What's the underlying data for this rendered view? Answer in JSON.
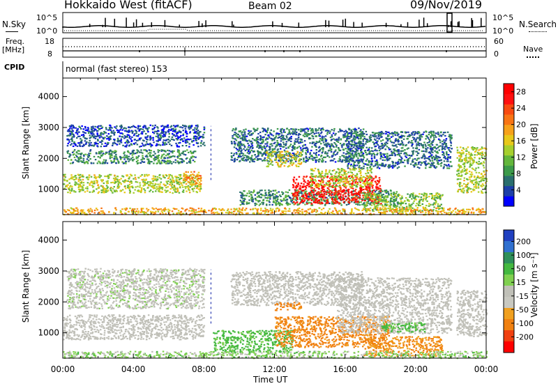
{
  "header": {
    "site": "Hokkaido West (fitACF)",
    "beam": "Beam 02",
    "date": "09/Nov/2019"
  },
  "status_panels": {
    "nsky_label": "N.Sky",
    "nsky_scale_top": "10^5",
    "nsky_scale_bottom": "10^0",
    "nsearch_label": "N.Search",
    "nsearch_scale_top": "10^5",
    "nsearch_scale_bottom": "10^0",
    "freq_label": "Freq.",
    "freq_unit": "[MHz]",
    "freq_top": "18",
    "freq_bottom": "8",
    "nave_label": "Nave",
    "nave_top": "60",
    "nave_bottom": "0",
    "cpid_label": "CPID",
    "cpid_text": "normal (fast stereo) 153"
  },
  "chart_data": [
    {
      "type": "heatmap",
      "panel": "power",
      "ylabel": "Slant Range [km]",
      "xlabel": "Time UT",
      "x_ticks": [
        "00:00",
        "04:00",
        "08:00",
        "12:00",
        "16:00",
        "20:00",
        "00:00"
      ],
      "xlim_hours": [
        0,
        24
      ],
      "y_ticks": [
        1000,
        2000,
        3000,
        4000
      ],
      "ylim": [
        180,
        4600
      ],
      "colorbar": {
        "label": "Power [dB]",
        "ticks": [
          4,
          8,
          12,
          16,
          20,
          24,
          28
        ],
        "range": [
          0,
          30
        ],
        "colors": [
          "#0000ff",
          "#1d3fa8",
          "#2a6e6e",
          "#3c9a4a",
          "#63b63c",
          "#a6cf2e",
          "#e8c81a",
          "#f6a11a",
          "#f87414",
          "#f84a10",
          "#ff1010",
          "#ff0000"
        ]
      },
      "regions": [
        {
          "t0": 0.0,
          "t1": 7.8,
          "r0": 900,
          "r1": 1500,
          "value": 14
        },
        {
          "t0": 0.2,
          "t1": 7.5,
          "r0": 1850,
          "r1": 2300,
          "value": 8
        },
        {
          "t0": 0.2,
          "t1": 8.0,
          "r0": 2400,
          "r1": 3100,
          "value": 4
        },
        {
          "t0": 6.8,
          "t1": 7.8,
          "r0": 1150,
          "r1": 1600,
          "value": 20
        },
        {
          "t0": 9.5,
          "t1": 17.0,
          "r0": 1900,
          "r1": 3000,
          "value": 6
        },
        {
          "t0": 11.5,
          "t1": 13.5,
          "r0": 1750,
          "r1": 2250,
          "value": 16
        },
        {
          "t0": 10.0,
          "t1": 19.0,
          "r0": 500,
          "r1": 1000,
          "value": 8
        },
        {
          "t0": 13.0,
          "t1": 18.0,
          "r0": 550,
          "r1": 1450,
          "value": 27
        },
        {
          "t0": 14.0,
          "t1": 17.5,
          "r0": 1100,
          "r1": 1700,
          "value": 14
        },
        {
          "t0": 16.0,
          "t1": 22.0,
          "r0": 1700,
          "r1": 2900,
          "value": 6
        },
        {
          "t0": 17.0,
          "t1": 21.5,
          "r0": 300,
          "r1": 900,
          "value": 12
        },
        {
          "t0": 22.3,
          "t1": 24.0,
          "r0": 900,
          "r1": 2400,
          "value": 14
        },
        {
          "t0": 0.0,
          "t1": 24.0,
          "r0": 200,
          "r1": 420,
          "value": 18
        }
      ]
    },
    {
      "type": "heatmap",
      "panel": "velocity",
      "ylabel": "Slant Range [km]",
      "xlabel": "Time UT",
      "x_ticks": [
        "00:00",
        "04:00",
        "08:00",
        "12:00",
        "16:00",
        "20:00",
        "00:00"
      ],
      "xlim_hours": [
        0,
        24
      ],
      "y_ticks": [
        1000,
        2000,
        3000,
        4000
      ],
      "ylim": [
        180,
        4600
      ],
      "colorbar": {
        "label": "Velocity [m s⁻¹]",
        "ticks": [
          200,
          100,
          50,
          15,
          -15,
          -50,
          -100,
          -200
        ],
        "colors": [
          "#2040c0",
          "#3070d0",
          "#2e8f5a",
          "#44b840",
          "#80d050",
          "#c0c0b8",
          "#c8c8c0",
          "#f0a020",
          "#f08010",
          "#f04010",
          "#ff0000"
        ]
      },
      "regions": [
        {
          "t0": 0.0,
          "t1": 8.0,
          "r0": 800,
          "r1": 1600,
          "value": 0
        },
        {
          "t0": 0.2,
          "t1": 8.0,
          "r0": 1800,
          "r1": 3100,
          "value": 5
        },
        {
          "t0": 9.5,
          "t1": 17.0,
          "r0": 1900,
          "r1": 3000,
          "value": 0
        },
        {
          "t0": 12.0,
          "t1": 13.5,
          "r0": 1750,
          "r1": 2000,
          "value": -60
        },
        {
          "t0": 8.5,
          "t1": 13.0,
          "r0": 400,
          "r1": 1100,
          "value": 40
        },
        {
          "t0": 12.0,
          "t1": 18.5,
          "r0": 550,
          "r1": 1550,
          "value": -60
        },
        {
          "t0": 15.5,
          "t1": 22.0,
          "r0": 1000,
          "r1": 2800,
          "value": 0
        },
        {
          "t0": 18.0,
          "t1": 20.5,
          "r0": 1050,
          "r1": 1350,
          "value": 40
        },
        {
          "t0": 17.0,
          "t1": 21.5,
          "r0": 250,
          "r1": 900,
          "value": -50
        },
        {
          "t0": 22.3,
          "t1": 24.0,
          "r0": 900,
          "r1": 2400,
          "value": 0
        },
        {
          "t0": 0.0,
          "t1": 24.0,
          "r0": 200,
          "r1": 420,
          "value": 20
        }
      ]
    }
  ]
}
